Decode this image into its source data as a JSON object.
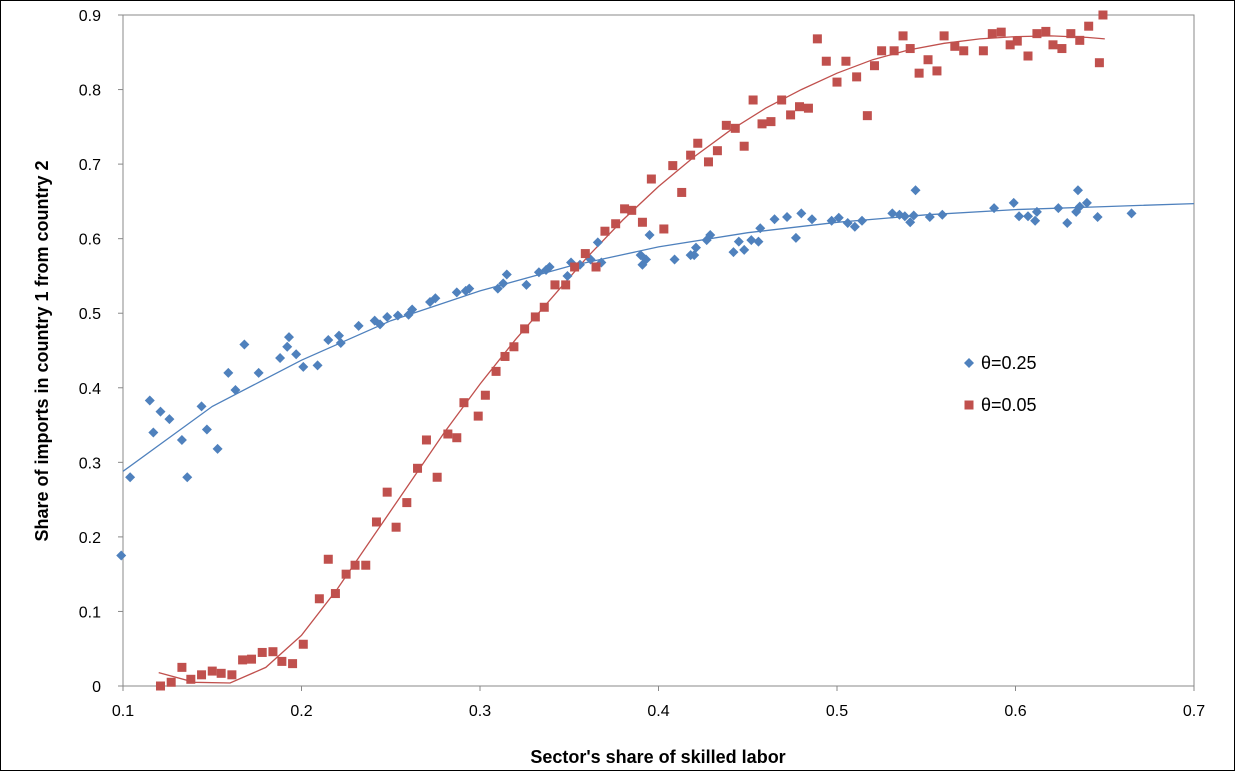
{
  "chart_data": {
    "type": "scatter",
    "xlabel": "Sector's share of skilled labor",
    "ylabel": "Share of imports in country 1 from country 2",
    "xlim": [
      0.1,
      0.7
    ],
    "ylim": [
      0,
      0.9
    ],
    "xticks": [
      "0.1",
      "0.2",
      "0.3",
      "0.4",
      "0.5",
      "0.6",
      "0.7"
    ],
    "yticks": [
      "0",
      "0.1",
      "0.2",
      "0.3",
      "0.4",
      "0.5",
      "0.6",
      "0.7",
      "0.8",
      "0.9"
    ],
    "grid": false,
    "legend_position": "right",
    "series": [
      {
        "name": "θ=0.25",
        "marker": "diamond",
        "color": "#4f81bd",
        "trendline": [
          [
            0.1,
            0.288
          ],
          [
            0.15,
            0.375
          ],
          [
            0.2,
            0.437
          ],
          [
            0.25,
            0.49
          ],
          [
            0.3,
            0.53
          ],
          [
            0.35,
            0.563
          ],
          [
            0.4,
            0.589
          ],
          [
            0.45,
            0.608
          ],
          [
            0.5,
            0.622
          ],
          [
            0.55,
            0.632
          ],
          [
            0.6,
            0.639
          ],
          [
            0.65,
            0.643
          ],
          [
            0.7,
            0.647
          ]
        ],
        "points": [
          [
            0.099,
            0.175
          ],
          [
            0.104,
            0.28
          ],
          [
            0.115,
            0.383
          ],
          [
            0.117,
            0.34
          ],
          [
            0.121,
            0.368
          ],
          [
            0.126,
            0.358
          ],
          [
            0.133,
            0.33
          ],
          [
            0.136,
            0.28
          ],
          [
            0.144,
            0.375
          ],
          [
            0.147,
            0.344
          ],
          [
            0.153,
            0.318
          ],
          [
            0.159,
            0.42
          ],
          [
            0.163,
            0.397
          ],
          [
            0.168,
            0.458
          ],
          [
            0.176,
            0.42
          ],
          [
            0.188,
            0.44
          ],
          [
            0.192,
            0.455
          ],
          [
            0.193,
            0.468
          ],
          [
            0.197,
            0.445
          ],
          [
            0.201,
            0.428
          ],
          [
            0.209,
            0.43
          ],
          [
            0.215,
            0.464
          ],
          [
            0.221,
            0.47
          ],
          [
            0.222,
            0.46
          ],
          [
            0.232,
            0.483
          ],
          [
            0.241,
            0.49
          ],
          [
            0.244,
            0.485
          ],
          [
            0.248,
            0.495
          ],
          [
            0.254,
            0.497
          ],
          [
            0.26,
            0.498
          ],
          [
            0.262,
            0.505
          ],
          [
            0.272,
            0.515
          ],
          [
            0.275,
            0.52
          ],
          [
            0.287,
            0.528
          ],
          [
            0.292,
            0.53
          ],
          [
            0.294,
            0.533
          ],
          [
            0.31,
            0.533
          ],
          [
            0.313,
            0.54
          ],
          [
            0.315,
            0.552
          ],
          [
            0.326,
            0.538
          ],
          [
            0.333,
            0.555
          ],
          [
            0.337,
            0.558
          ],
          [
            0.339,
            0.562
          ],
          [
            0.349,
            0.55
          ],
          [
            0.351,
            0.568
          ],
          [
            0.356,
            0.565
          ],
          [
            0.362,
            0.572
          ],
          [
            0.368,
            0.568
          ],
          [
            0.366,
            0.595
          ],
          [
            0.39,
            0.578
          ],
          [
            0.391,
            0.565
          ],
          [
            0.393,
            0.572
          ],
          [
            0.395,
            0.605
          ],
          [
            0.409,
            0.572
          ],
          [
            0.418,
            0.578
          ],
          [
            0.42,
            0.578
          ],
          [
            0.421,
            0.588
          ],
          [
            0.427,
            0.598
          ],
          [
            0.429,
            0.605
          ],
          [
            0.442,
            0.582
          ],
          [
            0.445,
            0.596
          ],
          [
            0.448,
            0.585
          ],
          [
            0.452,
            0.598
          ],
          [
            0.456,
            0.596
          ],
          [
            0.457,
            0.614
          ],
          [
            0.465,
            0.626
          ],
          [
            0.472,
            0.629
          ],
          [
            0.477,
            0.601
          ],
          [
            0.48,
            0.634
          ],
          [
            0.486,
            0.626
          ],
          [
            0.497,
            0.624
          ],
          [
            0.501,
            0.628
          ],
          [
            0.506,
            0.621
          ],
          [
            0.51,
            0.616
          ],
          [
            0.514,
            0.624
          ],
          [
            0.531,
            0.634
          ],
          [
            0.535,
            0.632
          ],
          [
            0.538,
            0.63
          ],
          [
            0.541,
            0.622
          ],
          [
            0.543,
            0.631
          ],
          [
            0.544,
            0.665
          ],
          [
            0.552,
            0.629
          ],
          [
            0.559,
            0.632
          ],
          [
            0.588,
            0.641
          ],
          [
            0.599,
            0.648
          ],
          [
            0.602,
            0.63
          ],
          [
            0.607,
            0.63
          ],
          [
            0.611,
            0.624
          ],
          [
            0.612,
            0.636
          ],
          [
            0.624,
            0.641
          ],
          [
            0.629,
            0.621
          ],
          [
            0.634,
            0.636
          ],
          [
            0.635,
            0.665
          ],
          [
            0.636,
            0.643
          ],
          [
            0.64,
            0.648
          ],
          [
            0.646,
            0.629
          ],
          [
            0.665,
            0.634
          ]
        ]
      },
      {
        "name": "θ=0.05",
        "marker": "square",
        "color": "#c0504d",
        "trendline": [
          [
            0.12,
            0.018
          ],
          [
            0.14,
            0.005
          ],
          [
            0.16,
            0.004
          ],
          [
            0.18,
            0.025
          ],
          [
            0.2,
            0.068
          ],
          [
            0.22,
            0.13
          ],
          [
            0.24,
            0.2
          ],
          [
            0.26,
            0.27
          ],
          [
            0.28,
            0.34
          ],
          [
            0.3,
            0.405
          ],
          [
            0.32,
            0.465
          ],
          [
            0.34,
            0.52
          ],
          [
            0.36,
            0.575
          ],
          [
            0.38,
            0.625
          ],
          [
            0.4,
            0.67
          ],
          [
            0.42,
            0.71
          ],
          [
            0.44,
            0.745
          ],
          [
            0.46,
            0.775
          ],
          [
            0.48,
            0.8
          ],
          [
            0.5,
            0.822
          ],
          [
            0.52,
            0.84
          ],
          [
            0.54,
            0.853
          ],
          [
            0.56,
            0.862
          ],
          [
            0.58,
            0.868
          ],
          [
            0.6,
            0.871
          ],
          [
            0.62,
            0.872
          ],
          [
            0.64,
            0.87
          ],
          [
            0.65,
            0.868
          ]
        ],
        "points": [
          [
            0.121,
            0.0
          ],
          [
            0.127,
            0.005
          ],
          [
            0.133,
            0.025
          ],
          [
            0.138,
            0.009
          ],
          [
            0.144,
            0.015
          ],
          [
            0.15,
            0.02
          ],
          [
            0.155,
            0.017
          ],
          [
            0.161,
            0.015
          ],
          [
            0.167,
            0.035
          ],
          [
            0.172,
            0.036
          ],
          [
            0.178,
            0.045
          ],
          [
            0.184,
            0.046
          ],
          [
            0.189,
            0.033
          ],
          [
            0.195,
            0.03
          ],
          [
            0.201,
            0.056
          ],
          [
            0.21,
            0.117
          ],
          [
            0.215,
            0.17
          ],
          [
            0.219,
            0.124
          ],
          [
            0.225,
            0.15
          ],
          [
            0.23,
            0.162
          ],
          [
            0.236,
            0.162
          ],
          [
            0.242,
            0.22
          ],
          [
            0.248,
            0.26
          ],
          [
            0.253,
            0.213
          ],
          [
            0.259,
            0.246
          ],
          [
            0.265,
            0.292
          ],
          [
            0.27,
            0.33
          ],
          [
            0.276,
            0.28
          ],
          [
            0.282,
            0.338
          ],
          [
            0.287,
            0.333
          ],
          [
            0.291,
            0.38
          ],
          [
            0.299,
            0.362
          ],
          [
            0.303,
            0.39
          ],
          [
            0.309,
            0.422
          ],
          [
            0.314,
            0.442
          ],
          [
            0.319,
            0.455
          ],
          [
            0.325,
            0.479
          ],
          [
            0.331,
            0.495
          ],
          [
            0.336,
            0.508
          ],
          [
            0.342,
            0.538
          ],
          [
            0.348,
            0.538
          ],
          [
            0.353,
            0.562
          ],
          [
            0.359,
            0.58
          ],
          [
            0.365,
            0.562
          ],
          [
            0.37,
            0.61
          ],
          [
            0.376,
            0.62
          ],
          [
            0.381,
            0.64
          ],
          [
            0.385,
            0.638
          ],
          [
            0.391,
            0.622
          ],
          [
            0.396,
            0.68
          ],
          [
            0.403,
            0.613
          ],
          [
            0.408,
            0.698
          ],
          [
            0.413,
            0.662
          ],
          [
            0.418,
            0.712
          ],
          [
            0.422,
            0.728
          ],
          [
            0.428,
            0.703
          ],
          [
            0.433,
            0.718
          ],
          [
            0.438,
            0.752
          ],
          [
            0.443,
            0.748
          ],
          [
            0.448,
            0.724
          ],
          [
            0.453,
            0.786
          ],
          [
            0.458,
            0.754
          ],
          [
            0.463,
            0.757
          ],
          [
            0.469,
            0.786
          ],
          [
            0.474,
            0.766
          ],
          [
            0.479,
            0.777
          ],
          [
            0.484,
            0.775
          ],
          [
            0.489,
            0.868
          ],
          [
            0.494,
            0.838
          ],
          [
            0.5,
            0.81
          ],
          [
            0.505,
            0.838
          ],
          [
            0.511,
            0.817
          ],
          [
            0.517,
            0.765
          ],
          [
            0.521,
            0.832
          ],
          [
            0.525,
            0.852
          ],
          [
            0.532,
            0.852
          ],
          [
            0.537,
            0.872
          ],
          [
            0.541,
            0.855
          ],
          [
            0.546,
            0.822
          ],
          [
            0.551,
            0.84
          ],
          [
            0.556,
            0.825
          ],
          [
            0.56,
            0.872
          ],
          [
            0.566,
            0.858
          ],
          [
            0.571,
            0.852
          ],
          [
            0.582,
            0.852
          ],
          [
            0.587,
            0.875
          ],
          [
            0.592,
            0.877
          ],
          [
            0.597,
            0.86
          ],
          [
            0.601,
            0.865
          ],
          [
            0.607,
            0.845
          ],
          [
            0.612,
            0.875
          ],
          [
            0.617,
            0.878
          ],
          [
            0.621,
            0.86
          ],
          [
            0.626,
            0.855
          ],
          [
            0.631,
            0.875
          ],
          [
            0.636,
            0.866
          ],
          [
            0.641,
            0.885
          ],
          [
            0.647,
            0.836
          ],
          [
            0.649,
            0.9
          ]
        ]
      }
    ]
  }
}
